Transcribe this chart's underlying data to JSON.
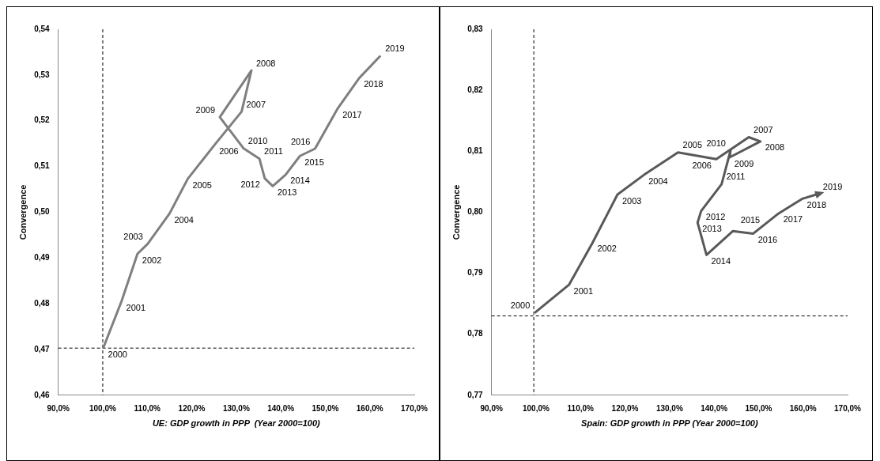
{
  "chart_data": [
    {
      "type": "line",
      "xlabel": "UE: GDP growth in PPP  (Year 2000=100)",
      "ylabel": "Convergence",
      "marker": "none",
      "line_style": "solid",
      "legend": false,
      "grid": false,
      "x": [
        100.1,
        104.2,
        107.8,
        110.1,
        115.0,
        119.1,
        125.1,
        131.2,
        133.4,
        126.3,
        131.6,
        135.2,
        136.4,
        138.2,
        141.1,
        144.3,
        147.7,
        152.8,
        157.6,
        162.4
      ],
      "series": [
        {
          "color": "#7f7f7f",
          "values": [
            0.4703,
            0.4805,
            0.4909,
            0.4931,
            0.4997,
            0.5073,
            0.5147,
            0.522,
            0.531,
            0.5208,
            0.514,
            0.5117,
            0.5074,
            0.5057,
            0.5082,
            0.5123,
            0.5139,
            0.5227,
            0.5293,
            0.5342
          ]
        }
      ],
      "xlim": [
        90,
        170
      ],
      "xticks": [
        {
          "value": 90,
          "label": "90,0%"
        },
        {
          "value": 100,
          "label": "100,0%"
        },
        {
          "value": 110,
          "label": "110,0%"
        },
        {
          "value": 120,
          "label": "120,0%"
        },
        {
          "value": 130,
          "label": "130,0%"
        },
        {
          "value": 140,
          "label": "140,0%"
        },
        {
          "value": 150,
          "label": "150,0%"
        },
        {
          "value": 160,
          "label": "160,0%"
        },
        {
          "value": 170,
          "label": "170,0%"
        }
      ],
      "ylim": [
        0.46,
        0.54
      ],
      "yticks": [
        {
          "value": 0.46,
          "label": "0,46"
        },
        {
          "value": 0.47,
          "label": "0,47"
        },
        {
          "value": 0.48,
          "label": "0,48"
        },
        {
          "value": 0.49,
          "label": "0,49"
        },
        {
          "value": 0.5,
          "label": "0,50"
        },
        {
          "value": 0.51,
          "label": "0,51"
        },
        {
          "value": 0.52,
          "label": "0,52"
        },
        {
          "value": 0.53,
          "label": "0,53"
        },
        {
          "value": 0.54,
          "label": "0,54"
        }
      ],
      "ref_lines": [
        {
          "axis": "x",
          "value": 100,
          "color": "#000000",
          "line_style": "dashed"
        },
        {
          "axis": "y",
          "value": 0.4703,
          "color": "#000000",
          "line_style": "dashed"
        }
      ],
      "annotations": [
        {
          "text": "2000",
          "x": 100.1,
          "y": 0.4703
        },
        {
          "text": "2001",
          "x": 104.2,
          "y": 0.4805
        },
        {
          "text": "2002",
          "x": 107.8,
          "y": 0.4909
        },
        {
          "text": "2003",
          "x": 110.1,
          "y": 0.4931
        },
        {
          "text": "2004",
          "x": 115.0,
          "y": 0.4997
        },
        {
          "text": "2005",
          "x": 119.1,
          "y": 0.5073
        },
        {
          "text": "2006",
          "x": 125.1,
          "y": 0.5147
        },
        {
          "text": "2007",
          "x": 131.2,
          "y": 0.522
        },
        {
          "text": "2008",
          "x": 133.4,
          "y": 0.531
        },
        {
          "text": "2009",
          "x": 126.3,
          "y": 0.5208
        },
        {
          "text": "2010",
          "x": 131.6,
          "y": 0.514
        },
        {
          "text": "2011",
          "x": 135.2,
          "y": 0.5117
        },
        {
          "text": "2012",
          "x": 136.4,
          "y": 0.5074
        },
        {
          "text": "2013",
          "x": 138.2,
          "y": 0.5057
        },
        {
          "text": "2014",
          "x": 141.1,
          "y": 0.5082
        },
        {
          "text": "2015",
          "x": 144.3,
          "y": 0.5123
        },
        {
          "text": "2016",
          "x": 147.7,
          "y": 0.5139
        },
        {
          "text": "2017",
          "x": 152.8,
          "y": 0.5227
        },
        {
          "text": "2018",
          "x": 157.6,
          "y": 0.5293
        },
        {
          "text": "2019",
          "x": 162.4,
          "y": 0.5342
        }
      ]
    },
    {
      "type": "line",
      "xlabel": "Spain: GDP growth in PPP (Year 2000=100)",
      "ylabel": "Convergence",
      "marker": "none",
      "line_style": "solid",
      "legend": false,
      "grid": false,
      "x": [
        99.7,
        107.4,
        112.7,
        118.3,
        124.2,
        131.9,
        140.5,
        147.8,
        150.4,
        143.5,
        143.7,
        141.7,
        137.1,
        136.3,
        138.3,
        144.2,
        148.8,
        154.5,
        159.8,
        163.4
      ],
      "series": [
        {
          "color": "#595959",
          "values": [
            0.7835,
            0.7881,
            0.795,
            0.8029,
            0.8061,
            0.8098,
            0.8087,
            0.8123,
            0.8116,
            0.809,
            0.8101,
            0.8046,
            0.8002,
            0.7983,
            0.793,
            0.7969,
            0.7965,
            0.7998,
            0.8022,
            0.803
          ]
        }
      ],
      "xlim": [
        90,
        170
      ],
      "xticks": [
        {
          "value": 90,
          "label": "90,0%"
        },
        {
          "value": 100,
          "label": "100,0%"
        },
        {
          "value": 110,
          "label": "110,0%"
        },
        {
          "value": 120,
          "label": "120,0%"
        },
        {
          "value": 130,
          "label": "130,0%"
        },
        {
          "value": 140,
          "label": "140,0%"
        },
        {
          "value": 150,
          "label": "150,0%"
        },
        {
          "value": 160,
          "label": "160,0%"
        },
        {
          "value": 170,
          "label": "170,0%"
        }
      ],
      "ylim": [
        0.77,
        0.83
      ],
      "yticks": [
        {
          "value": 0.77,
          "label": "0,77"
        },
        {
          "value": 0.78,
          "label": "0,78"
        },
        {
          "value": 0.79,
          "label": "0,79"
        },
        {
          "value": 0.8,
          "label": "0,80"
        },
        {
          "value": 0.81,
          "label": "0,81"
        },
        {
          "value": 0.82,
          "label": "0,82"
        },
        {
          "value": 0.83,
          "label": "0,83"
        }
      ],
      "ref_lines": [
        {
          "axis": "x",
          "value": 99.5,
          "color": "#000000",
          "line_style": "dashed"
        },
        {
          "axis": "y",
          "value": 0.783,
          "color": "#000000",
          "line_style": "dashed"
        }
      ],
      "annotations": [
        {
          "text": "2000",
          "x": 99.7,
          "y": 0.7835
        },
        {
          "text": "2001",
          "x": 107.4,
          "y": 0.7881
        },
        {
          "text": "2002",
          "x": 112.7,
          "y": 0.795
        },
        {
          "text": "2003",
          "x": 118.3,
          "y": 0.8029
        },
        {
          "text": "2004",
          "x": 124.2,
          "y": 0.8061
        },
        {
          "text": "2005",
          "x": 131.9,
          "y": 0.8098
        },
        {
          "text": "2006",
          "x": 140.5,
          "y": 0.8087
        },
        {
          "text": "2007",
          "x": 147.8,
          "y": 0.8123
        },
        {
          "text": "2008",
          "x": 150.4,
          "y": 0.8116
        },
        {
          "text": "2009",
          "x": 143.5,
          "y": 0.809
        },
        {
          "text": "2010",
          "x": 143.7,
          "y": 0.8101
        },
        {
          "text": "2011",
          "x": 141.7,
          "y": 0.8046
        },
        {
          "text": "2012",
          "x": 137.1,
          "y": 0.8002
        },
        {
          "text": "2013",
          "x": 136.3,
          "y": 0.7983
        },
        {
          "text": "2014",
          "x": 138.3,
          "y": 0.793
        },
        {
          "text": "2015",
          "x": 144.2,
          "y": 0.7969
        },
        {
          "text": "2016",
          "x": 148.8,
          "y": 0.7965
        },
        {
          "text": "2017",
          "x": 154.5,
          "y": 0.7998
        },
        {
          "text": "2018",
          "x": 159.8,
          "y": 0.8022
        },
        {
          "text": "2019",
          "x": 163.4,
          "y": 0.803
        }
      ]
    }
  ]
}
